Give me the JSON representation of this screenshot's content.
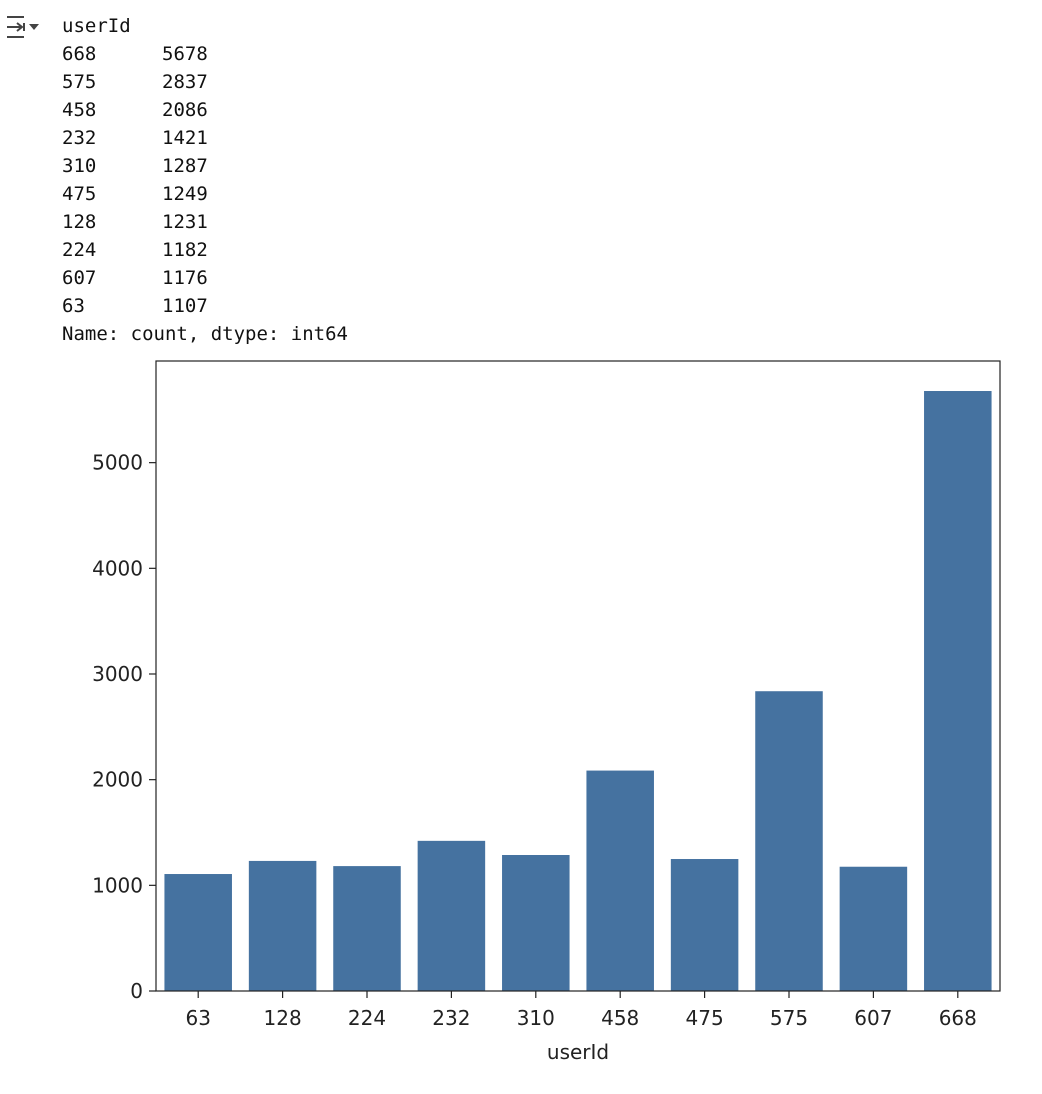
{
  "output": {
    "icon": "output-expand-icon",
    "header": "userId",
    "rows": [
      {
        "index": "668",
        "value": "5678"
      },
      {
        "index": "575",
        "value": "2837"
      },
      {
        "index": "458",
        "value": "2086"
      },
      {
        "index": "232",
        "value": "1421"
      },
      {
        "index": "310",
        "value": "1287"
      },
      {
        "index": "475",
        "value": "1249"
      },
      {
        "index": "128",
        "value": "1231"
      },
      {
        "index": "224",
        "value": "1182"
      },
      {
        "index": "607",
        "value": "1176"
      },
      {
        "index": "63",
        "value": "1107"
      }
    ],
    "footer": "Name: count, dtype: int64"
  },
  "chart_data": {
    "type": "bar",
    "categories": [
      "63",
      "128",
      "224",
      "232",
      "310",
      "458",
      "475",
      "575",
      "607",
      "668"
    ],
    "values": [
      1107,
      1231,
      1182,
      1421,
      1287,
      2086,
      1249,
      2837,
      1176,
      5678
    ],
    "xlabel": "userId",
    "ylabel": "",
    "ylim": [
      0,
      5962
    ],
    "yticks": [
      0,
      1000,
      2000,
      3000,
      4000,
      5000
    ],
    "bar_color": "#4572a0",
    "grid": false
  }
}
